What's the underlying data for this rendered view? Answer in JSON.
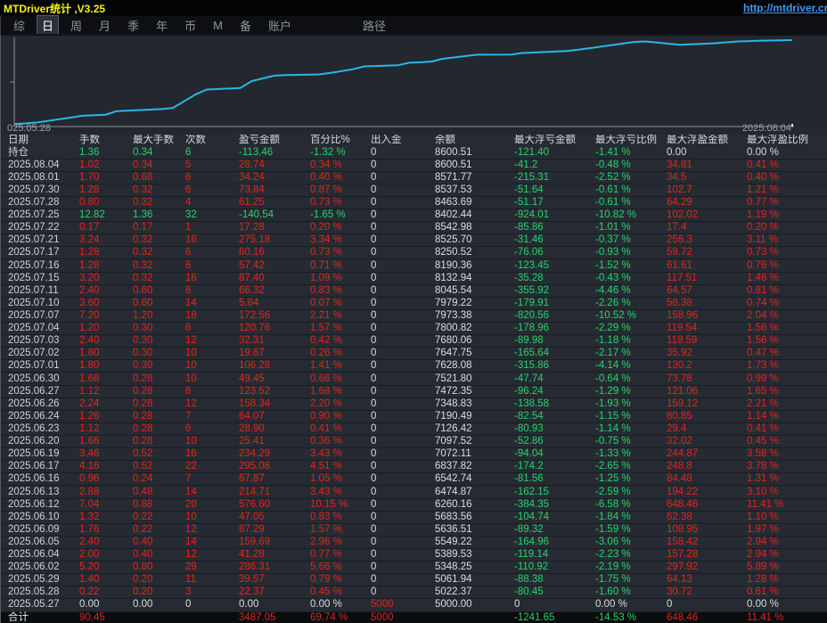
{
  "window": {
    "title": "MTDriver统计 ,V3.25",
    "url": "http://mtdriver.cn"
  },
  "menu": {
    "items": [
      {
        "label": "综",
        "selected": false
      },
      {
        "label": "日",
        "selected": true
      },
      {
        "label": "周",
        "selected": false
      },
      {
        "label": "月",
        "selected": false
      },
      {
        "label": "季",
        "selected": false
      },
      {
        "label": "年",
        "selected": false
      },
      {
        "label": "币",
        "selected": false
      },
      {
        "label": "M",
        "selected": false
      },
      {
        "label": "备",
        "selected": false
      },
      {
        "label": "账户",
        "selected": false
      },
      {
        "label": "路径",
        "selected": false,
        "path": true
      }
    ]
  },
  "chart": {
    "x_start_label": "025.05.28",
    "x_end_label": "2025.08.04",
    "line_color": "#29b6ea",
    "axis_color": "#8d939b"
  },
  "chart_data": {
    "type": "line",
    "title": "",
    "xlabel": "",
    "ylabel": "",
    "legend": "none",
    "grid": false,
    "x": [
      "2025.05.27",
      "2025.05.28",
      "2025.05.29",
      "2025.06.02",
      "2025.06.04",
      "2025.06.05",
      "2025.06.09",
      "2025.06.10",
      "2025.06.12",
      "2025.06.13",
      "2025.06.16",
      "2025.06.17",
      "2025.06.19",
      "2025.06.20",
      "2025.06.23",
      "2025.06.24",
      "2025.06.26",
      "2025.06.27",
      "2025.06.30",
      "2025.07.01",
      "2025.07.02",
      "2025.07.03",
      "2025.07.04",
      "2025.07.07",
      "2025.07.10",
      "2025.07.11",
      "2025.07.15",
      "2025.07.16",
      "2025.07.17",
      "2025.07.21",
      "2025.07.22",
      "2025.07.25",
      "2025.07.28",
      "2025.07.30",
      "2025.08.01",
      "2025.08.04"
    ],
    "series": [
      {
        "name": "余额",
        "values": [
          5000.0,
          5022.37,
          5061.94,
          5348.25,
          5389.53,
          5549.22,
          5636.51,
          5683.56,
          6260.16,
          6474.87,
          6542.74,
          6837.82,
          7072.11,
          7097.52,
          7126.42,
          7190.49,
          7348.83,
          7472.35,
          7521.8,
          7628.08,
          7647.75,
          7680.06,
          7800.82,
          7973.38,
          7979.22,
          8045.54,
          8132.94,
          8190.36,
          8250.52,
          8525.7,
          8542.98,
          8402.44,
          8463.69,
          8537.53,
          8571.77,
          8600.51
        ]
      }
    ],
    "ylim": [
      5000,
      8600.51
    ],
    "tick_labels": [
      "025.05.28",
      "2025.08.04"
    ]
  },
  "table": {
    "headers": [
      "日期",
      "手数",
      "最大手数",
      "次数",
      "盈亏金额",
      "百分比%",
      "出入金",
      "余额",
      "最大浮亏金额",
      "最大浮亏比例",
      "最大浮盈金额",
      "最大浮盈比例"
    ],
    "rows": [
      {
        "cells": [
          "持仓",
          "1.36",
          "0.34",
          "6",
          "-113.46",
          "-1.32 %",
          "0",
          "8600.51",
          "-121.40",
          "-1.41 %",
          "0.00",
          "0.00 %"
        ]
      },
      {
        "cells": [
          "2025.08.04",
          "1.02",
          "0.34",
          "5",
          "28.74",
          "0.34 %",
          "0",
          "8600.51",
          "-41.2",
          "-0.48 %",
          "34.81",
          "0.41 %"
        ]
      },
      {
        "cells": [
          "2025.08.01",
          "1.70",
          "0.68",
          "6",
          "34.24",
          "0.40 %",
          "0",
          "8571.77",
          "-215.31",
          "-2.52 %",
          "34.5",
          "0.40 %"
        ]
      },
      {
        "cells": [
          "2025.07.30",
          "1.28",
          "0.32",
          "6",
          "73.84",
          "0.87 %",
          "0",
          "8537.53",
          "-51.64",
          "-0.61 %",
          "102.7",
          "1.21 %"
        ]
      },
      {
        "cells": [
          "2025.07.28",
          "0.80",
          "0.32",
          "4",
          "61.25",
          "0.73 %",
          "0",
          "8463.69",
          "-51.17",
          "-0.61 %",
          "64.29",
          "0.77 %"
        ]
      },
      {
        "cells": [
          "2025.07.25",
          "12.82",
          "1.36",
          "32",
          "-140.54",
          "-1.65 %",
          "0",
          "8402.44",
          "-924.01",
          "-10.82 %",
          "102.02",
          "1.19 %"
        ]
      },
      {
        "cells": [
          "2025.07.22",
          "0.17",
          "0.17",
          "1",
          "17.28",
          "0.20 %",
          "0",
          "8542.98",
          "-85.86",
          "-1.01 %",
          "17.4",
          "0.20 %"
        ]
      },
      {
        "cells": [
          "2025.07.21",
          "3.24",
          "0.32",
          "16",
          "275.18",
          "3.34 %",
          "0",
          "8525.70",
          "-31.46",
          "-0.37 %",
          "256.3",
          "3.11 %"
        ]
      },
      {
        "cells": [
          "2025.07.17",
          "1.28",
          "0.32",
          "6",
          "60.16",
          "0.73 %",
          "0",
          "8250.52",
          "-76.06",
          "-0.93 %",
          "59.72",
          "0.73 %"
        ]
      },
      {
        "cells": [
          "2025.07.16",
          "1.28",
          "0.32",
          "6",
          "57.42",
          "0.71 %",
          "0",
          "8190.36",
          "-123.45",
          "-1.52 %",
          "61.61",
          "0.76 %"
        ]
      },
      {
        "cells": [
          "2025.07.15",
          "3.20",
          "0.32",
          "16",
          "87.40",
          "1.09 %",
          "0",
          "8132.94",
          "-35.28",
          "-0.43 %",
          "117.51",
          "1.46 %"
        ]
      },
      {
        "cells": [
          "2025.07.11",
          "2.40",
          "0.60",
          "8",
          "66.32",
          "0.83 %",
          "0",
          "8045.54",
          "-355.92",
          "-4.46 %",
          "64.57",
          "0.81 %"
        ]
      },
      {
        "cells": [
          "2025.07.10",
          "3.60",
          "0.60",
          "14",
          "5.84",
          "0.07 %",
          "0",
          "7979.22",
          "-179.91",
          "-2.26 %",
          "58.38",
          "0.74 %"
        ]
      },
      {
        "cells": [
          "2025.07.07",
          "7.20",
          "1.20",
          "18",
          "172.56",
          "2.21 %",
          "0",
          "7973.38",
          "-820.56",
          "-10.52 %",
          "158.96",
          "2.04 %"
        ]
      },
      {
        "cells": [
          "2025.07.04",
          "1.20",
          "0.30",
          "6",
          "120.76",
          "1.57 %",
          "0",
          "7800.82",
          "-178.96",
          "-2.29 %",
          "119.54",
          "1.56 %"
        ]
      },
      {
        "cells": [
          "2025.07.03",
          "2.40",
          "0.30",
          "12",
          "32.31",
          "0.42 %",
          "0",
          "7680.06",
          "-89.98",
          "-1.18 %",
          "119.59",
          "1.56 %"
        ]
      },
      {
        "cells": [
          "2025.07.02",
          "1.80",
          "0.30",
          "10",
          "19.67",
          "0.26 %",
          "0",
          "7647.75",
          "-165.64",
          "-2.17 %",
          "35.92",
          "0.47 %"
        ]
      },
      {
        "cells": [
          "2025.07.01",
          "1.80",
          "0.30",
          "10",
          "106.28",
          "1.41 %",
          "0",
          "7628.08",
          "-315.86",
          "-4.14 %",
          "130.2",
          "1.73 %"
        ]
      },
      {
        "cells": [
          "2025.06.30",
          "1.68",
          "0.28",
          "10",
          "49.45",
          "0.66 %",
          "0",
          "7521.80",
          "-47.74",
          "-0.64 %",
          "73.78",
          "0.99 %"
        ]
      },
      {
        "cells": [
          "2025.06.27",
          "1.12",
          "0.28",
          "6",
          "123.52",
          "1.68 %",
          "0",
          "7472.35",
          "-96.24",
          "-1.29 %",
          "121.06",
          "1.65 %"
        ]
      },
      {
        "cells": [
          "2025.06.26",
          "2.24",
          "0.28",
          "12",
          "158.34",
          "2.20 %",
          "0",
          "7348.83",
          "-138.58",
          "-1.93 %",
          "159.12",
          "2.21 %"
        ]
      },
      {
        "cells": [
          "2025.06.24",
          "1.26",
          "0.28",
          "7",
          "64.07",
          "0.90 %",
          "0",
          "7190.49",
          "-82.54",
          "-1.15 %",
          "80.85",
          "1.14 %"
        ]
      },
      {
        "cells": [
          "2025.06.23",
          "1.12",
          "0.28",
          "6",
          "28.90",
          "0.41 %",
          "0",
          "7126.42",
          "-80.93",
          "-1.14 %",
          "29.4",
          "0.41 %"
        ]
      },
      {
        "cells": [
          "2025.06.20",
          "1.68",
          "0.28",
          "10",
          "25.41",
          "0.36 %",
          "0",
          "7097.52",
          "-52.86",
          "-0.75 %",
          "32.02",
          "0.45 %"
        ]
      },
      {
        "cells": [
          "2025.06.19",
          "3.46",
          "0.52",
          "16",
          "234.29",
          "3.43 %",
          "0",
          "7072.11",
          "-94.04",
          "-1.33 %",
          "244.87",
          "3.58 %"
        ]
      },
      {
        "cells": [
          "2025.06.17",
          "4.16",
          "0.52",
          "22",
          "295.08",
          "4.51 %",
          "0",
          "6837.82",
          "-174.2",
          "-2.65 %",
          "248.8",
          "3.78 %"
        ]
      },
      {
        "cells": [
          "2025.06.16",
          "0.96",
          "0.24",
          "7",
          "67.87",
          "1.05 %",
          "0",
          "6542.74",
          "-81.56",
          "-1.25 %",
          "84.48",
          "1.31 %"
        ]
      },
      {
        "cells": [
          "2025.06.13",
          "2.88",
          "0.48",
          "14",
          "214.71",
          "3.43 %",
          "0",
          "6474.87",
          "-162.15",
          "-2.59 %",
          "194.22",
          "3.10 %"
        ]
      },
      {
        "cells": [
          "2025.06.12",
          "7.04",
          "0.88",
          "20",
          "576.60",
          "10.15 %",
          "0",
          "6260.16",
          "-384.35",
          "-6.58 %",
          "648.46",
          "11.41 %"
        ]
      },
      {
        "cells": [
          "2025.06.10",
          "1.32",
          "0.22",
          "10",
          "47.05",
          "0.83 %",
          "0",
          "5683.56",
          "-104.74",
          "-1.84 %",
          "62.38",
          "1.10 %"
        ]
      },
      {
        "cells": [
          "2025.06.09",
          "1.76",
          "0.22",
          "12",
          "87.29",
          "1.57 %",
          "0",
          "5636.51",
          "-89.32",
          "-1.59 %",
          "108.95",
          "1.97 %"
        ]
      },
      {
        "cells": [
          "2025.06.05",
          "2.40",
          "0.40",
          "14",
          "159.69",
          "2.96 %",
          "0",
          "5549.22",
          "-164.96",
          "-3.06 %",
          "158.42",
          "2.94 %"
        ]
      },
      {
        "cells": [
          "2025.06.04",
          "2.00",
          "0.40",
          "12",
          "41.28",
          "0.77 %",
          "0",
          "5389.53",
          "-119.14",
          "-2.23 %",
          "157.28",
          "2.94 %"
        ]
      },
      {
        "cells": [
          "2025.06.02",
          "5.20",
          "0.80",
          "29",
          "286.31",
          "5.66 %",
          "0",
          "5348.25",
          "-110.92",
          "-2.19 %",
          "297.92",
          "5.89 %"
        ]
      },
      {
        "cells": [
          "2025.05.29",
          "1.40",
          "0.20",
          "11",
          "39.57",
          "0.79 %",
          "0",
          "5061.94",
          "-88.38",
          "-1.75 %",
          "64.13",
          "1.28 %"
        ]
      },
      {
        "cells": [
          "2025.05.28",
          "0.22",
          "0.20",
          "3",
          "22.37",
          "0.45 %",
          "0",
          "5022.37",
          "-80.45",
          "-1.60 %",
          "30.72",
          "0.61 %"
        ]
      },
      {
        "cells": [
          "2025.05.27",
          "0.00",
          "0.00",
          "0",
          "0.00",
          "0.00 %",
          "5000",
          "5000.00",
          "0",
          "0.00 %",
          "0",
          "0.00 %"
        ]
      },
      {
        "cells": [
          "合计",
          "90.45",
          "",
          "",
          "3487.05",
          "69.74 %",
          "5000",
          "",
          "-1241.65",
          "-14.53 %",
          "648.46",
          "11.41 %"
        ],
        "total": true
      }
    ]
  },
  "colors": {
    "profit_red": "#e1251b",
    "loss_green": "#25d36a",
    "accent_line": "#29b6ea",
    "title_yellow": "#f6f400",
    "url_blue": "#3d9bf0"
  }
}
